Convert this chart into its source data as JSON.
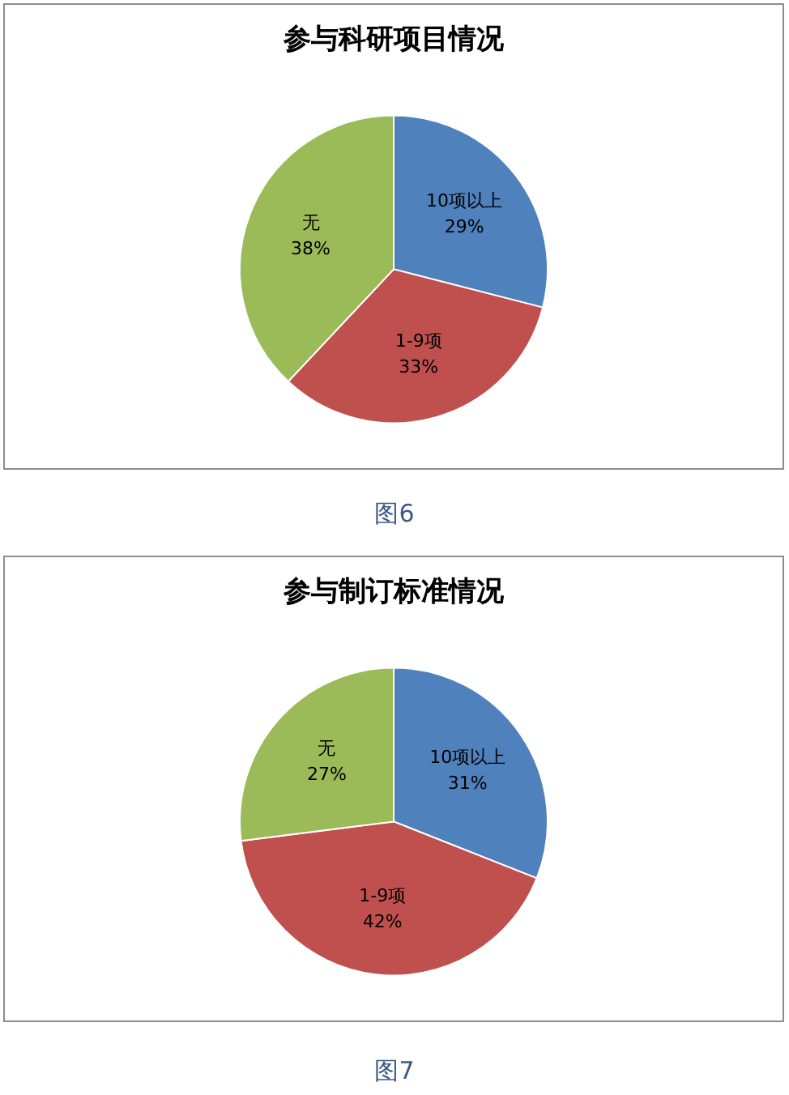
{
  "chart_data": [
    {
      "type": "pie",
      "title": "参与科研项目情况",
      "categories": [
        "10项以上",
        "1-9项",
        "无"
      ],
      "values": [
        29,
        33,
        38
      ],
      "value_labels": [
        "29%",
        "33%",
        "38%"
      ],
      "colors": [
        "#4f81bd",
        "#c0504d",
        "#9bbb59"
      ],
      "legend": false,
      "annotations": [
        "图6"
      ]
    },
    {
      "type": "pie",
      "title": "参与制订标准情况",
      "categories": [
        "10项以上",
        "1-9项",
        "无"
      ],
      "values": [
        31,
        42,
        27
      ],
      "value_labels": [
        "31%",
        "42%",
        "27%"
      ],
      "colors": [
        "#4f81bd",
        "#c0504d",
        "#9bbb59"
      ],
      "legend": false,
      "annotations": [
        "图7"
      ]
    }
  ]
}
